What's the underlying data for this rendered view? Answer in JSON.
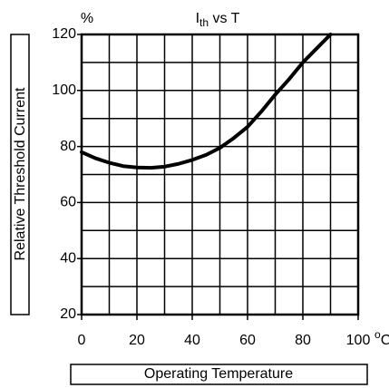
{
  "chart_data": {
    "type": "line",
    "title": [
      "I",
      "th",
      " vs T"
    ],
    "y_unit": "%",
    "x_unit": [
      "o",
      "C"
    ],
    "ylabel": "Relative Threshold Current",
    "xlabel": "Operating Temperature",
    "xlim": [
      0,
      100
    ],
    "ylim": [
      20,
      120
    ],
    "xticks": [
      0,
      20,
      40,
      60,
      80,
      100
    ],
    "yticks": [
      20,
      40,
      60,
      80,
      100,
      120
    ],
    "minor_xticks": [
      10,
      30,
      50,
      70,
      90
    ],
    "minor_yticks": [
      30,
      50,
      70,
      90,
      110
    ],
    "grid": true,
    "series": [
      {
        "color": "#000000",
        "x": [
          0,
          5,
          10,
          15,
          20,
          25,
          30,
          35,
          40,
          45,
          50,
          55,
          60,
          65,
          70,
          75,
          80,
          85,
          90
        ],
        "values": [
          78,
          75.8,
          74.2,
          73,
          72.5,
          72.4,
          72.8,
          73.8,
          75.2,
          77,
          79.5,
          83,
          87,
          92.5,
          98.5,
          104,
          110,
          115,
          120
        ]
      }
    ]
  }
}
